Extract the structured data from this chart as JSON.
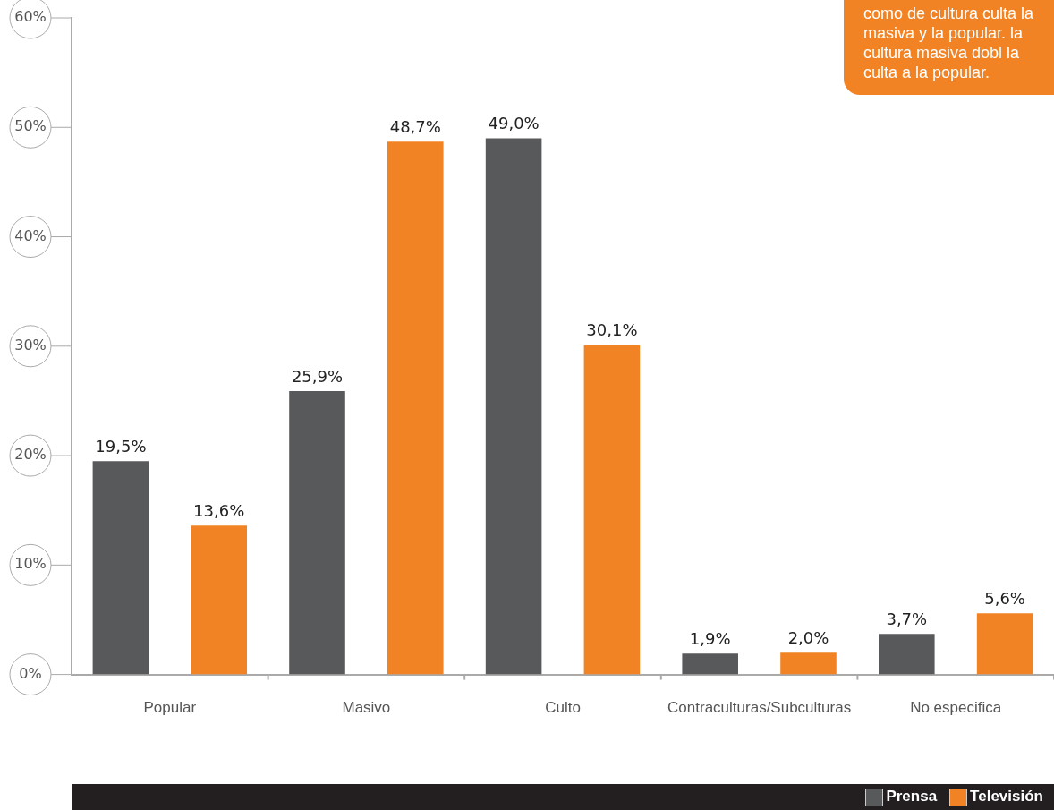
{
  "chart_data": {
    "type": "bar",
    "categories": [
      "Popular",
      "Masivo",
      "Culto",
      "Contraculturas/Subculturas",
      "No especifica"
    ],
    "series": [
      {
        "name": "Prensa",
        "color": "#58595b",
        "values": [
          19.5,
          25.9,
          49.0,
          1.9,
          3.7
        ],
        "value_labels": [
          "19,5%",
          "25,9%",
          "49,0%",
          "1,9%",
          "3,7%"
        ]
      },
      {
        "name": "Televisión",
        "color": "#f28324",
        "values": [
          13.6,
          48.7,
          30.1,
          2.0,
          5.6
        ],
        "value_labels": [
          "13,6%",
          "48,7%",
          "30,1%",
          "2,0%",
          "5,6%"
        ]
      }
    ],
    "ylim": [
      0,
      60
    ],
    "yticks": [
      {
        "value": 0,
        "label": "0%"
      },
      {
        "value": 10,
        "label": "10%"
      },
      {
        "value": 20,
        "label": "20%"
      },
      {
        "value": 30,
        "label": "30%"
      },
      {
        "value": 40,
        "label": "40%"
      },
      {
        "value": 50,
        "label": "50%"
      },
      {
        "value": 60,
        "label": "60%"
      }
    ],
    "grid": false,
    "legend": "bottom right",
    "annotations": [
      "como de cultura culta la masiva y la popular. la cultura masiva dobl la culta a la popular."
    ]
  }
}
